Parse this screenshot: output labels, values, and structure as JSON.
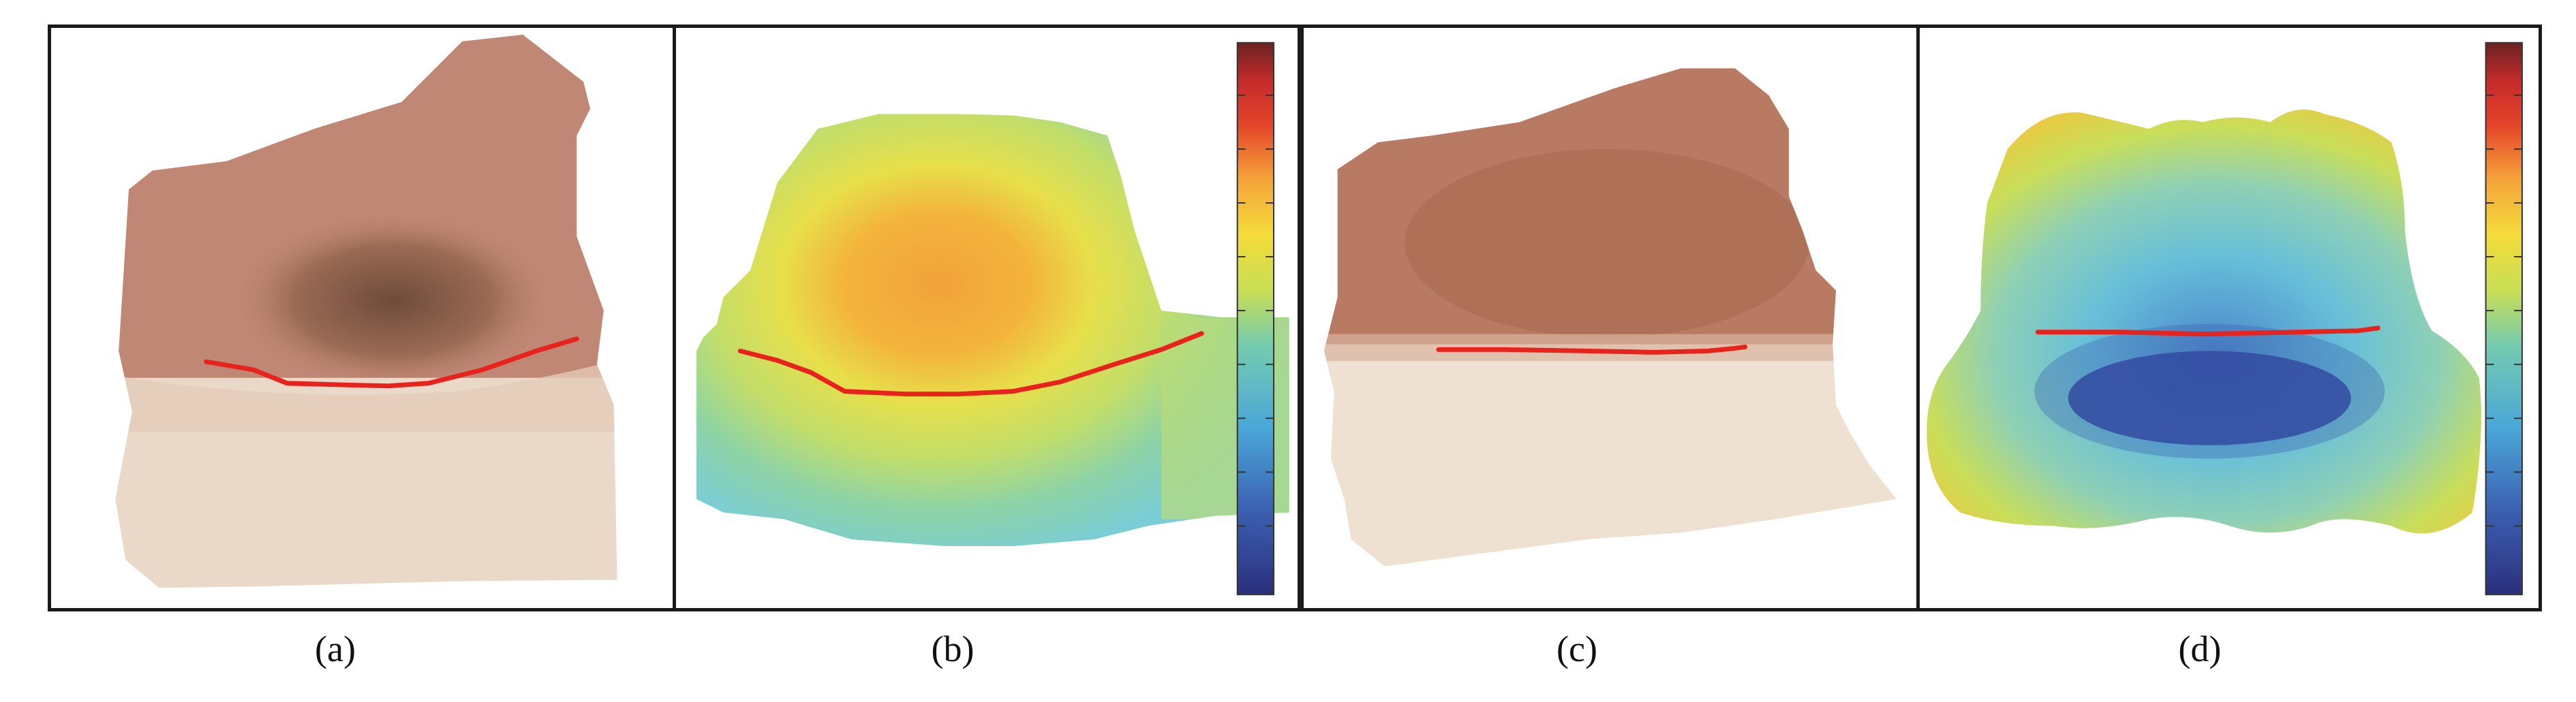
{
  "figure": {
    "captions": [
      "(a)",
      "(b)",
      "(c)",
      "(d)"
    ],
    "colors": {
      "boundary_line": "#e8231e",
      "frame": "#1a1a1a",
      "tissue_dark": "#b97a64",
      "tissue_light": "#efe1d2",
      "colormap": [
        "#2b2f7c",
        "#3b5fb0",
        "#4aa6d8",
        "#74cbb0",
        "#c7de55",
        "#f4dc3a",
        "#f5a53a",
        "#e5452a",
        "#c52a2a",
        "#6a2423"
      ]
    }
  }
}
